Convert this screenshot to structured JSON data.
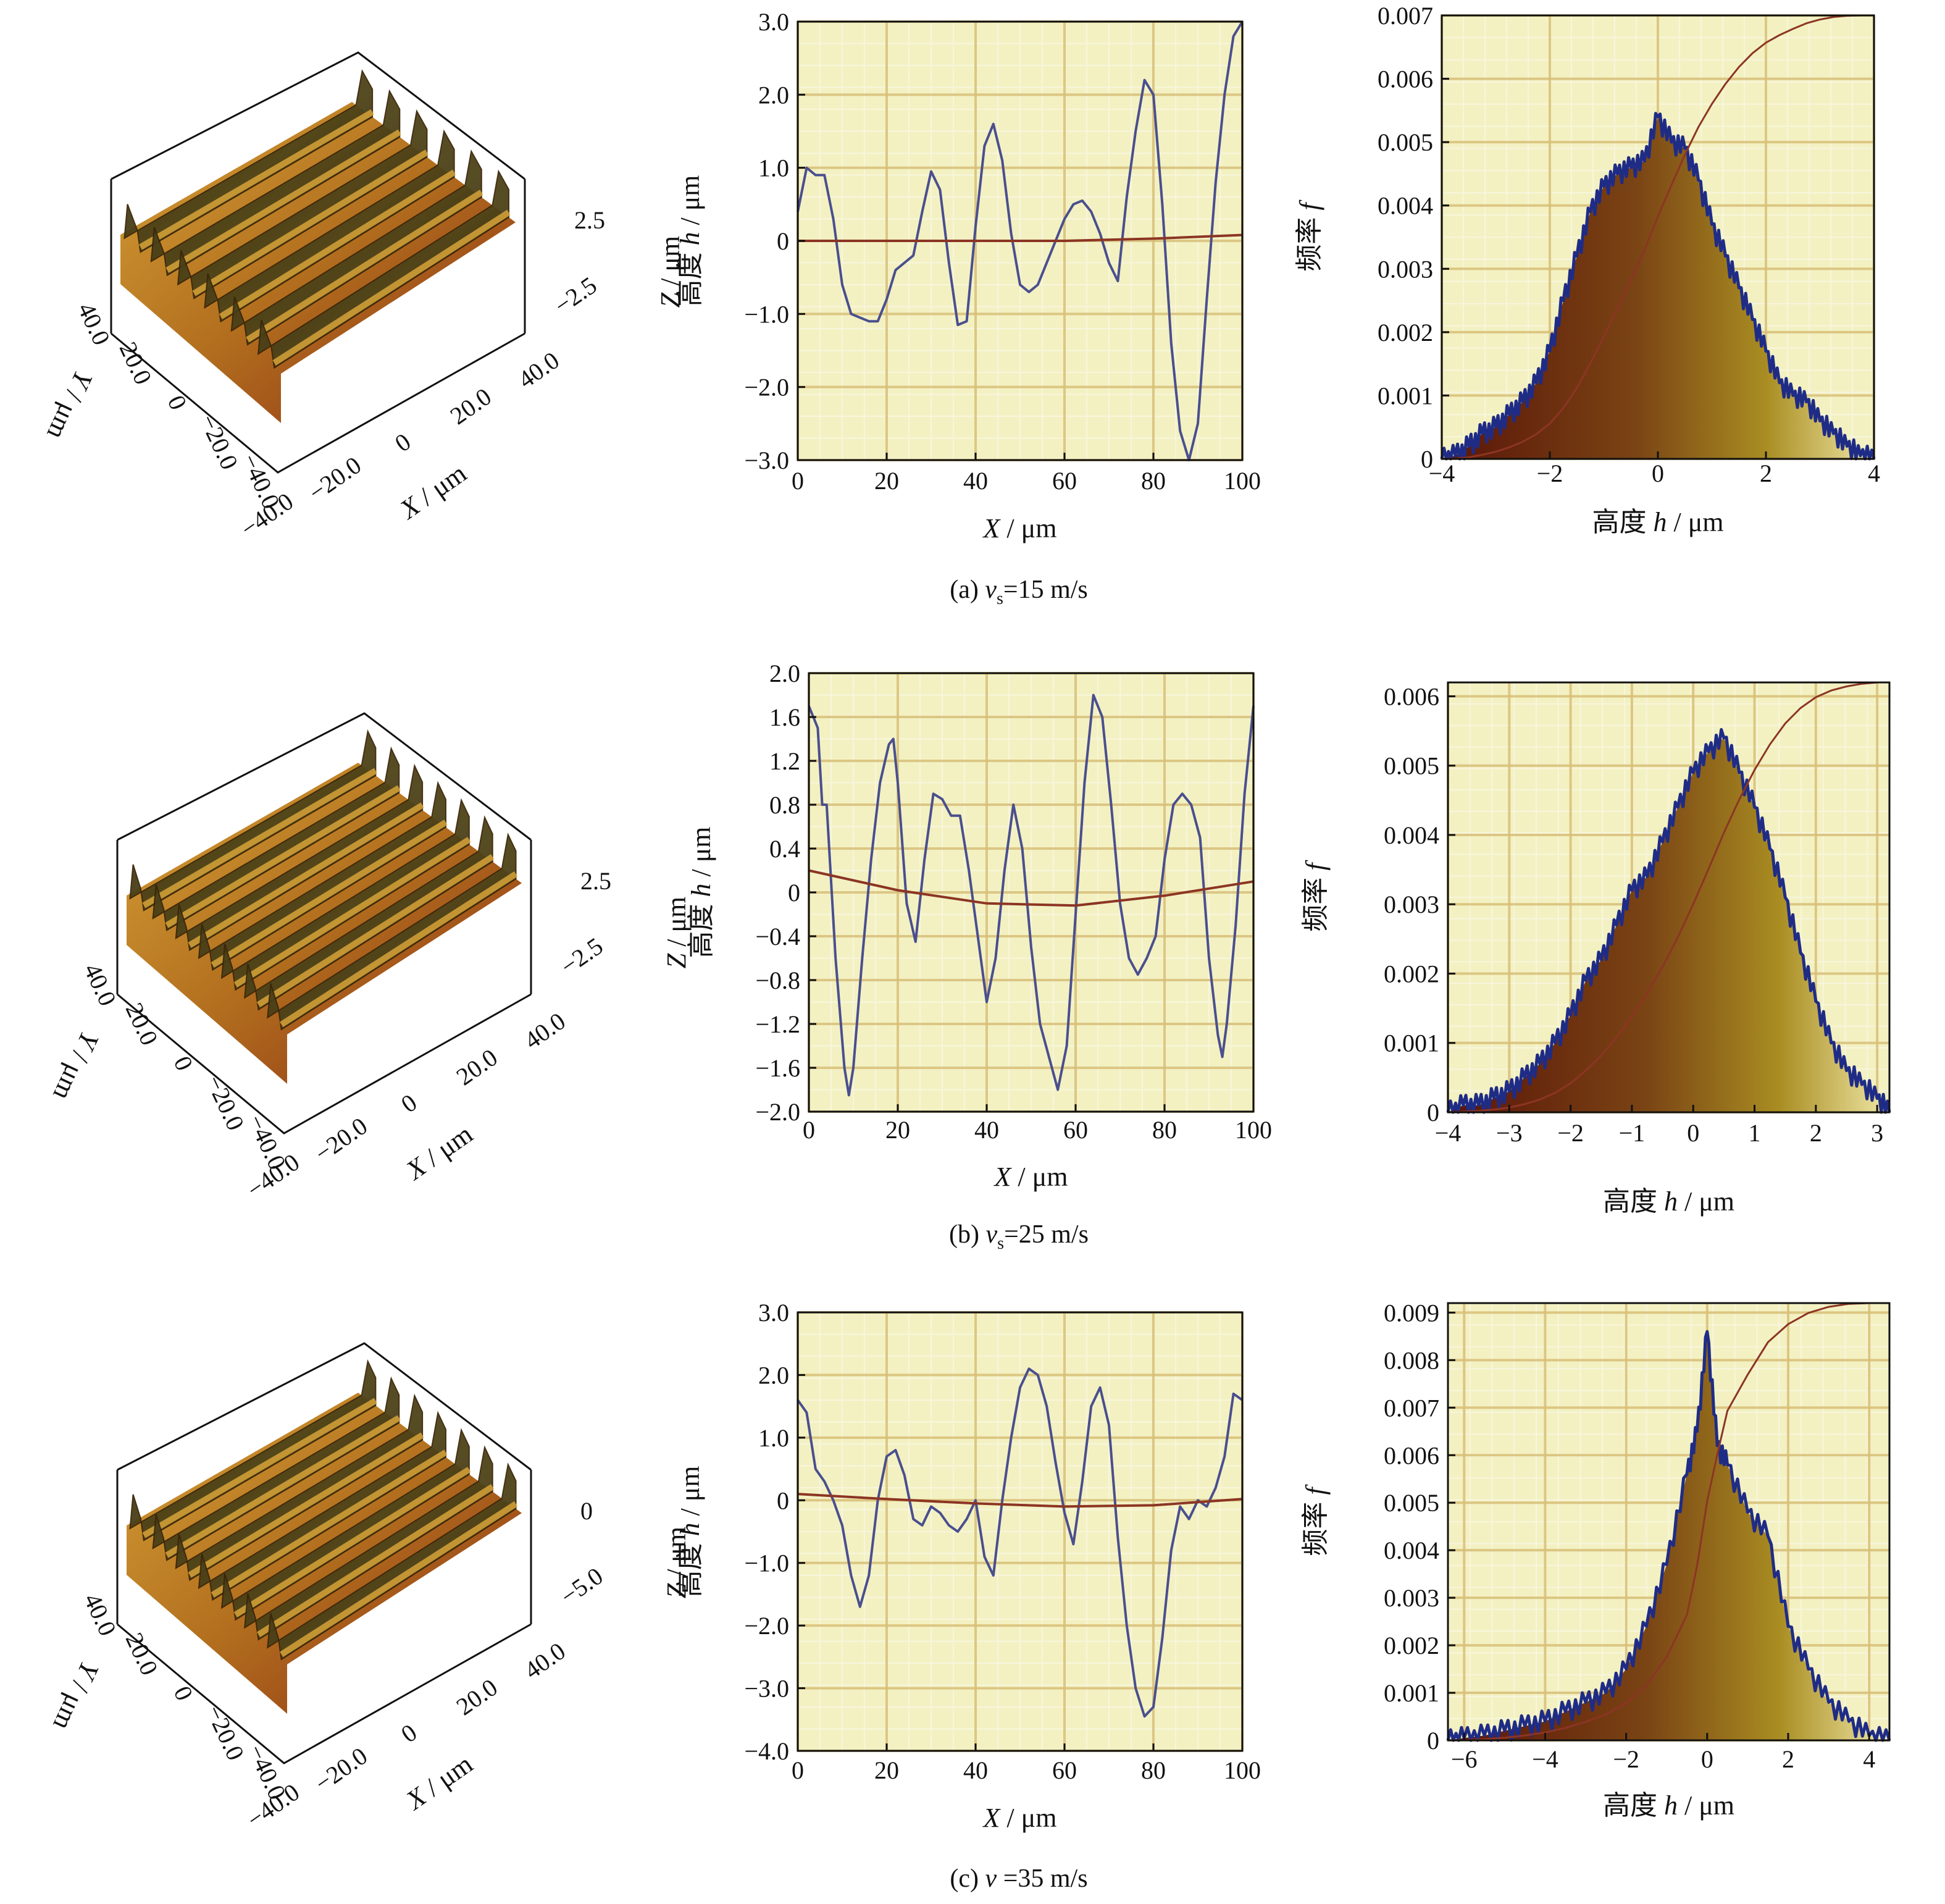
{
  "colors": {
    "plot_bg": "#f3f1c2",
    "grid_major": "#d8bf78",
    "grid_minor": "#f7f6dd",
    "profile_line": "#4a4f8e",
    "mean_line": "#8c3524",
    "histogram_outline": "#1f2c86",
    "surface_dark": "#2e2a14",
    "surface_light": "#d6a237",
    "surface_red": "#8a2a14"
  },
  "panels": [
    {
      "caption": {
        "prefix": "(a) ",
        "sym": "v",
        "sub": "s",
        "suffix": "=15 m/s"
      },
      "surface3d": {
        "z_axis_title": "Z / μm",
        "z_ticks": [
          "2.5",
          "−2.5"
        ],
        "x_axis_title": "X / μm",
        "x_ticks": [
          "−40.0",
          "−20.0",
          "0",
          "20.0",
          "40.0"
        ],
        "y_axis_title": "Y / μm",
        "y_ticks": [
          "−40.0",
          "−20.0",
          "0",
          "20.0",
          "40.0"
        ],
        "ridges": 6
      },
      "chart_data": {
        "type": "line",
        "xlabel": "X / μm",
        "ylabel": "高度 h / μm",
        "xlim": [
          0,
          100
        ],
        "ylim": [
          -3.0,
          3.0
        ],
        "x_ticks": [
          0,
          20,
          40,
          60,
          80,
          100
        ],
        "x_tick_labels": [
          "0",
          "20",
          "40",
          "60",
          "80",
          "100"
        ],
        "y_ticks": [
          3,
          2,
          1,
          0,
          -1,
          -2,
          -3
        ],
        "y_tick_labels": [
          "3.0",
          "2.0",
          "1.0",
          "0",
          "−1.0",
          "−2.0",
          "−3.0"
        ],
        "series": [
          {
            "role": "profile",
            "x": [
              0,
              2,
              4,
              6,
              8,
              10,
              12,
              14,
              16,
              18,
              20,
              22,
              24,
              26,
              28,
              30,
              32,
              34,
              36,
              38,
              40,
              42,
              44,
              46,
              48,
              50,
              52,
              54,
              56,
              58,
              60,
              62,
              64,
              66,
              68,
              70,
              72,
              74,
              76,
              78,
              80,
              82,
              84,
              86,
              88,
              90,
              92,
              94,
              96,
              98,
              100
            ],
            "y": [
              0.4,
              1.0,
              0.9,
              0.9,
              0.3,
              -0.6,
              -1.0,
              -1.05,
              -1.1,
              -1.1,
              -0.8,
              -0.4,
              -0.3,
              -0.2,
              0.4,
              0.95,
              0.7,
              -0.3,
              -1.15,
              -1.1,
              0.2,
              1.3,
              1.6,
              1.1,
              0.1,
              -0.6,
              -0.7,
              -0.6,
              -0.3,
              0.0,
              0.3,
              0.5,
              0.55,
              0.4,
              0.1,
              -0.3,
              -0.55,
              0.6,
              1.5,
              2.2,
              2.0,
              0.5,
              -1.4,
              -2.6,
              -3.0,
              -2.5,
              -0.8,
              0.8,
              2.0,
              2.8,
              3.0
            ]
          },
          {
            "role": "mean",
            "x": [
              0,
              20,
              40,
              60,
              80,
              100
            ],
            "y": [
              0.0,
              0.0,
              0.0,
              0.0,
              0.03,
              0.08
            ]
          }
        ]
      },
      "hist": {
        "type": "area",
        "xlabel": "高度 h / μm",
        "ylabel": "频率 f",
        "xlim": [
          -4,
          4
        ],
        "ylim": [
          0,
          0.007
        ],
        "x_ticks": [
          -4,
          -2,
          0,
          2,
          4
        ],
        "x_tick_labels": [
          "−4",
          "−2",
          "0",
          "2",
          "4"
        ],
        "y_ticks": [
          0,
          0.001,
          0.002,
          0.003,
          0.004,
          0.005,
          0.006,
          0.007
        ],
        "y_tick_labels": [
          "0",
          "0.001",
          "0.002",
          "0.003",
          "0.004",
          "0.005",
          "0.006",
          "0.007"
        ],
        "x": [
          -4,
          -3.75,
          -3.5,
          -3.25,
          -3,
          -2.75,
          -2.5,
          -2.25,
          -2,
          -1.75,
          -1.5,
          -1.25,
          -1,
          -0.75,
          -0.5,
          -0.25,
          0,
          0.25,
          0.5,
          0.75,
          1,
          1.25,
          1.5,
          1.75,
          2,
          2.25,
          2.5,
          2.75,
          3,
          3.25,
          3.5,
          3.75,
          4
        ],
        "y": [
          0,
          5e-05,
          0.0002,
          0.0004,
          0.0005,
          0.0007,
          0.0009,
          0.0012,
          0.0017,
          0.0025,
          0.0032,
          0.0039,
          0.0043,
          0.0045,
          0.0046,
          0.0047,
          0.0054,
          0.005,
          0.0049,
          0.0044,
          0.0037,
          0.0032,
          0.0027,
          0.0022,
          0.0017,
          0.0012,
          0.001,
          0.0009,
          0.0006,
          0.0004,
          0.0002,
          5e-05,
          0
        ]
      }
    },
    {
      "caption": {
        "prefix": "(b) ",
        "sym": "v",
        "sub": "s",
        "suffix": "=25 m/s"
      },
      "surface3d": {
        "z_axis_title": "Z / μm",
        "z_ticks": [
          "2.5",
          "−2.5"
        ],
        "x_axis_title": "X / μm",
        "x_ticks": [
          "−40.0",
          "−20.0",
          "0",
          "20.0",
          "40.0"
        ],
        "y_axis_title": "Y / μm",
        "y_ticks": [
          "−40.0",
          "−20.0",
          "0",
          "20.0",
          "40.0"
        ],
        "ridges": 7
      },
      "chart_data": {
        "type": "line",
        "xlabel": "X / μm",
        "ylabel": "高度 h / μm",
        "xlim": [
          0,
          100
        ],
        "ylim": [
          -2.0,
          2.0
        ],
        "x_ticks": [
          0,
          20,
          40,
          60,
          80,
          100
        ],
        "x_tick_labels": [
          "0",
          "20",
          "40",
          "60",
          "80",
          "100"
        ],
        "y_ticks": [
          2,
          1.6,
          1.2,
          0.8,
          0.4,
          0,
          -0.4,
          -0.8,
          -1.2,
          -1.6,
          -2
        ],
        "y_tick_labels": [
          "2.0",
          "1.6",
          "1.2",
          "0.8",
          "0.4",
          "0",
          "−0.4",
          "−0.8",
          "−1.2",
          "−1.6",
          "−2.0"
        ],
        "series": [
          {
            "role": "profile",
            "x": [
              0,
              2,
              3,
              4,
              6,
              8,
              9,
              10,
              12,
              14,
              16,
              18,
              19,
              20,
              22,
              24,
              26,
              28,
              30,
              32,
              34,
              36,
              38,
              40,
              42,
              44,
              46,
              48,
              50,
              52,
              54,
              56,
              58,
              60,
              62,
              64,
              66,
              68,
              70,
              72,
              74,
              76,
              78,
              80,
              82,
              84,
              86,
              88,
              90,
              92,
              93,
              94,
              96,
              98,
              100
            ],
            "y": [
              1.7,
              1.5,
              0.8,
              0.8,
              -0.6,
              -1.6,
              -1.85,
              -1.6,
              -0.6,
              0.3,
              1.0,
              1.35,
              1.4,
              1.0,
              -0.1,
              -0.45,
              0.3,
              0.9,
              0.85,
              0.7,
              0.7,
              0.2,
              -0.4,
              -1.0,
              -0.6,
              0.2,
              0.8,
              0.4,
              -0.5,
              -1.2,
              -1.5,
              -1.8,
              -1.4,
              -0.2,
              1.0,
              1.8,
              1.6,
              0.8,
              -0.1,
              -0.6,
              -0.75,
              -0.6,
              -0.4,
              0.3,
              0.8,
              0.9,
              0.8,
              0.5,
              -0.6,
              -1.3,
              -1.5,
              -1.2,
              -0.3,
              0.9,
              1.7
            ]
          },
          {
            "role": "mean",
            "x": [
              0,
              20,
              40,
              60,
              80,
              100
            ],
            "y": [
              0.2,
              0.02,
              -0.1,
              -0.12,
              -0.03,
              0.1
            ]
          }
        ]
      },
      "hist": {
        "type": "area",
        "xlabel": "高度 h / μm",
        "ylabel": "频率 f",
        "xlim": [
          -4,
          3.2
        ],
        "ylim": [
          0,
          0.0062
        ],
        "x_ticks": [
          -4,
          -3,
          -2,
          -1,
          0,
          1,
          2,
          3
        ],
        "x_tick_labels": [
          "−4",
          "−3",
          "−2",
          "−1",
          "0",
          "1",
          "2",
          "3"
        ],
        "y_ticks": [
          0,
          0.001,
          0.002,
          0.003,
          0.004,
          0.005,
          0.006
        ],
        "y_tick_labels": [
          "0",
          "0.001",
          "0.002",
          "0.003",
          "0.004",
          "0.005",
          "0.006"
        ],
        "x": [
          -4,
          -3.75,
          -3.5,
          -3.25,
          -3,
          -2.75,
          -2.5,
          -2.25,
          -2,
          -1.75,
          -1.5,
          -1.25,
          -1,
          -0.75,
          -0.5,
          -0.25,
          0,
          0.25,
          0.5,
          0.75,
          1,
          1.25,
          1.5,
          1.75,
          2,
          2.25,
          2.5,
          2.75,
          3,
          3.2
        ],
        "y": [
          0,
          0.0001,
          0.0001,
          0.0002,
          0.0003,
          0.0005,
          0.0007,
          0.001,
          0.0014,
          0.0019,
          0.0022,
          0.0027,
          0.0032,
          0.0034,
          0.0039,
          0.0044,
          0.0049,
          0.0052,
          0.0054,
          0.0049,
          0.0044,
          0.0038,
          0.0031,
          0.0023,
          0.0016,
          0.001,
          0.0006,
          0.0004,
          0.0002,
          0
        ]
      }
    },
    {
      "caption": {
        "prefix": "(c) ",
        "sym": "v",
        "sub": "",
        "suffix": " =35 m/s"
      },
      "surface3d": {
        "z_axis_title": "Z / μm",
        "z_ticks": [
          "0",
          "−5.0"
        ],
        "x_axis_title": "X / μm",
        "x_ticks": [
          "−40.0",
          "−20.0",
          "0",
          "20.0",
          "40.0"
        ],
        "y_axis_title": "Y / μm",
        "y_ticks": [
          "−40.0",
          "−20.0",
          "0",
          "20.0",
          "40.0"
        ],
        "ridges": 7
      },
      "chart_data": {
        "type": "line",
        "xlabel": "X / μm",
        "ylabel": "高度 h / μm",
        "xlim": [
          0,
          100
        ],
        "ylim": [
          -4.0,
          3.0
        ],
        "x_ticks": [
          0,
          20,
          40,
          60,
          80,
          100
        ],
        "x_tick_labels": [
          "0",
          "20",
          "40",
          "60",
          "80",
          "100"
        ],
        "y_ticks": [
          3,
          2,
          1,
          0,
          -1,
          -2,
          -3,
          -4
        ],
        "y_tick_labels": [
          "3.0",
          "2.0",
          "1.0",
          "0",
          "−1.0",
          "−2.0",
          "−3.0",
          "−4.0"
        ],
        "series": [
          {
            "role": "profile",
            "x": [
              0,
              2,
              4,
              6,
              8,
              10,
              12,
              14,
              16,
              18,
              20,
              22,
              24,
              26,
              28,
              30,
              32,
              34,
              36,
              38,
              40,
              42,
              44,
              46,
              48,
              50,
              52,
              54,
              56,
              58,
              60,
              62,
              64,
              66,
              68,
              70,
              72,
              74,
              76,
              78,
              80,
              82,
              84,
              86,
              88,
              90,
              92,
              94,
              96,
              98,
              100
            ],
            "y": [
              1.6,
              1.4,
              0.5,
              0.3,
              0.0,
              -0.4,
              -1.2,
              -1.7,
              -1.2,
              0.0,
              0.7,
              0.8,
              0.4,
              -0.3,
              -0.4,
              -0.1,
              -0.2,
              -0.4,
              -0.5,
              -0.3,
              0.0,
              -0.9,
              -1.2,
              0.0,
              1.0,
              1.8,
              2.1,
              2.0,
              1.5,
              0.6,
              -0.2,
              -0.7,
              0.3,
              1.5,
              1.8,
              1.2,
              -0.6,
              -2.0,
              -3.0,
              -3.45,
              -3.3,
              -2.2,
              -0.8,
              -0.1,
              -0.3,
              0.0,
              -0.1,
              0.2,
              0.7,
              1.7,
              1.6
            ]
          },
          {
            "role": "mean",
            "x": [
              0,
              20,
              40,
              60,
              80,
              100
            ],
            "y": [
              0.1,
              0.02,
              -0.05,
              -0.1,
              -0.08,
              0.02
            ]
          }
        ]
      },
      "hist": {
        "type": "area",
        "xlabel": "高度 h / μm",
        "ylabel": "频率 f",
        "xlim": [
          -6.4,
          4.5
        ],
        "ylim": [
          0,
          0.0092
        ],
        "x_ticks": [
          -6,
          -4,
          -2,
          0,
          2,
          4
        ],
        "x_tick_labels": [
          "−6",
          "−4",
          "−2",
          "0",
          "2",
          "4"
        ],
        "y_ticks": [
          0,
          0.001,
          0.002,
          0.003,
          0.004,
          0.005,
          0.006,
          0.007,
          0.008,
          0.009
        ],
        "y_tick_labels": [
          "0",
          "0.001",
          "0.002",
          "0.003",
          "0.004",
          "0.005",
          "0.006",
          "0.007",
          "0.008",
          "0.009"
        ],
        "x": [
          -6.4,
          -6,
          -5.5,
          -5,
          -4.5,
          -4,
          -3.5,
          -3,
          -2.5,
          -2,
          -1.5,
          -1,
          -0.5,
          -0.25,
          0,
          0.25,
          0.5,
          1,
          1.5,
          2,
          2.5,
          3,
          3.5,
          4,
          4.5
        ],
        "y": [
          0,
          5e-05,
          0.0001,
          0.0002,
          0.0003,
          0.0004,
          0.0006,
          0.0008,
          0.001,
          0.0015,
          0.0024,
          0.0037,
          0.0056,
          0.0065,
          0.0086,
          0.0062,
          0.0058,
          0.0048,
          0.0043,
          0.0024,
          0.0015,
          0.0008,
          0.0004,
          0.0001,
          0
        ]
      }
    }
  ]
}
